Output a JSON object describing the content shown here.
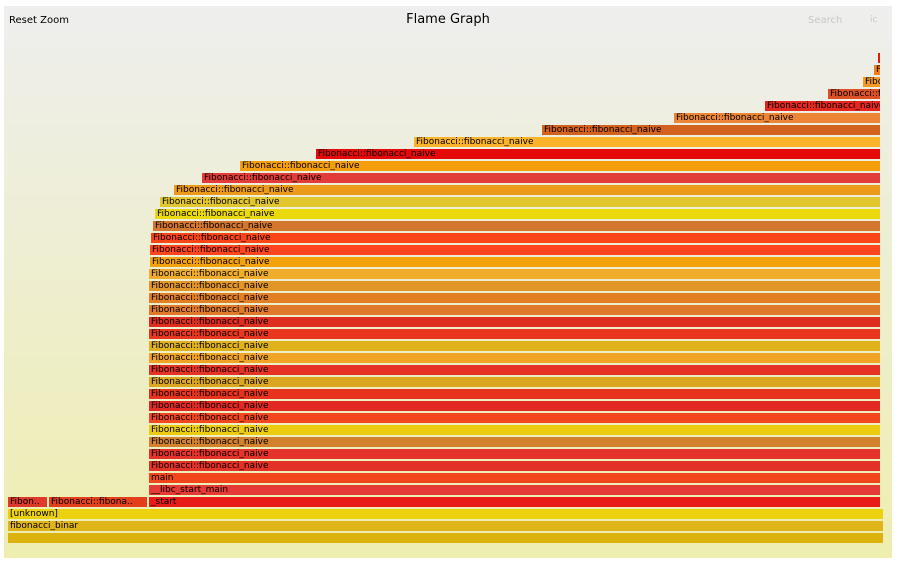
{
  "toolbar": {
    "reset_zoom_label": "Reset Zoom",
    "title": "Flame Graph",
    "search_label": "Search",
    "search_icon": "search-icon",
    "search_icon_glyph": "ic"
  },
  "frames": [
    {
      "label": "fibonacci_binar",
      "color": "#e0b51a"
    },
    {
      "label": "[unknown]",
      "color": "#ebd10f"
    },
    {
      "label": "Fibon..",
      "color": "#dd3a2c"
    },
    {
      "label": "Fibonacci::fibona..",
      "color": "#e33f1c"
    },
    {
      "label": "_start",
      "color": "#e81b18"
    },
    {
      "label": "__libc_start_main",
      "color": "#e53a36"
    },
    {
      "label": "main",
      "color": "#f1461b"
    },
    {
      "label": "Fibonacci::fibonacci_naive",
      "color": "#e43127"
    },
    {
      "label": "Fibonacci::fibonacci_naive",
      "color": "#e5322b"
    },
    {
      "label": "Fibonacci::fibonacci_naive",
      "color": "#d2822c"
    },
    {
      "label": "Fibonacci::fibonacci_naive",
      "color": "#eccc11"
    },
    {
      "label": "Fibonacci::fibonacci_naive",
      "color": "#f2461e"
    },
    {
      "label": "Fibonacci::fibonacci_naive",
      "color": "#e22823"
    },
    {
      "label": "Fibonacci::fibonacci_naive",
      "color": "#e7331d"
    },
    {
      "label": "Fibonacci::fibonacci_naive",
      "color": "#dba722"
    },
    {
      "label": "Fibonacci::fibonacci_naive",
      "color": "#e53225"
    },
    {
      "label": "Fibonacci::fibonacci_naive",
      "color": "#f0a325"
    },
    {
      "label": "Fibonacci::fibonacci_naive",
      "color": "#dfb21c"
    },
    {
      "label": "Fibonacci::fibonacci_naive",
      "color": "#e9371f"
    },
    {
      "label": "Fibonacci::fibonacci_naive",
      "color": "#df2d20"
    },
    {
      "label": "Fibonacci::fibonacci_naive",
      "color": "#e07a2a"
    },
    {
      "label": "Fibonacci::fibonacci_naive",
      "color": "#e27f22"
    },
    {
      "label": "Fibonacci::fibonacci_naive",
      "color": "#e39628"
    },
    {
      "label": "Fibonacci::fibonacci_naive",
      "color": "#f0ad2c"
    },
    {
      "label": "Fibonacci::fibonacci_naive",
      "color": "#f4a20b"
    },
    {
      "label": "Fibonacci::fibonacci_naive",
      "color": "#ff451f"
    },
    {
      "label": "Fibonacci::fibonacci_naive",
      "color": "#fa4519"
    },
    {
      "label": "Fibonacci::fibonacci_naive",
      "color": "#d3772e"
    },
    {
      "label": "Fibonacci::fibonacci_naive",
      "color": "#ead90c"
    },
    {
      "label": "Fibonacci::fibonacci_naive",
      "color": "#e1c62d"
    },
    {
      "label": "Fibonacci::fibonacci_naive",
      "color": "#ec9a19"
    },
    {
      "label": "Fibonacci::fibonacci_naive",
      "color": "#e23c3a"
    },
    {
      "label": "Fibonacci::fibonacci_naive",
      "color": "#f59e0c"
    },
    {
      "label": "Fibonacci::fibonacci_naive",
      "color": "#e40a0a"
    },
    {
      "label": "Fibonacci::fibonacci_naive",
      "color": "#f9b42c"
    },
    {
      "label": "Fibonacci::fibonacci_naive",
      "color": "#d4621f"
    },
    {
      "label": "Fibonacci::fibonacci_naive",
      "color": "#ec8636"
    },
    {
      "label": "Fibonacci::fibonacci_naive",
      "color": "#e5281f"
    },
    {
      "label": "Fibonacci::fibonac..",
      "color": "#dd5025"
    },
    {
      "label": "Fibonac..",
      "color": "#f39a23"
    },
    {
      "label": "F..",
      "color": "#f2801c"
    },
    {
      "label": "",
      "color": "#dd2010"
    },
    {
      "label": "",
      "color": "#e83b2e"
    }
  ]
}
